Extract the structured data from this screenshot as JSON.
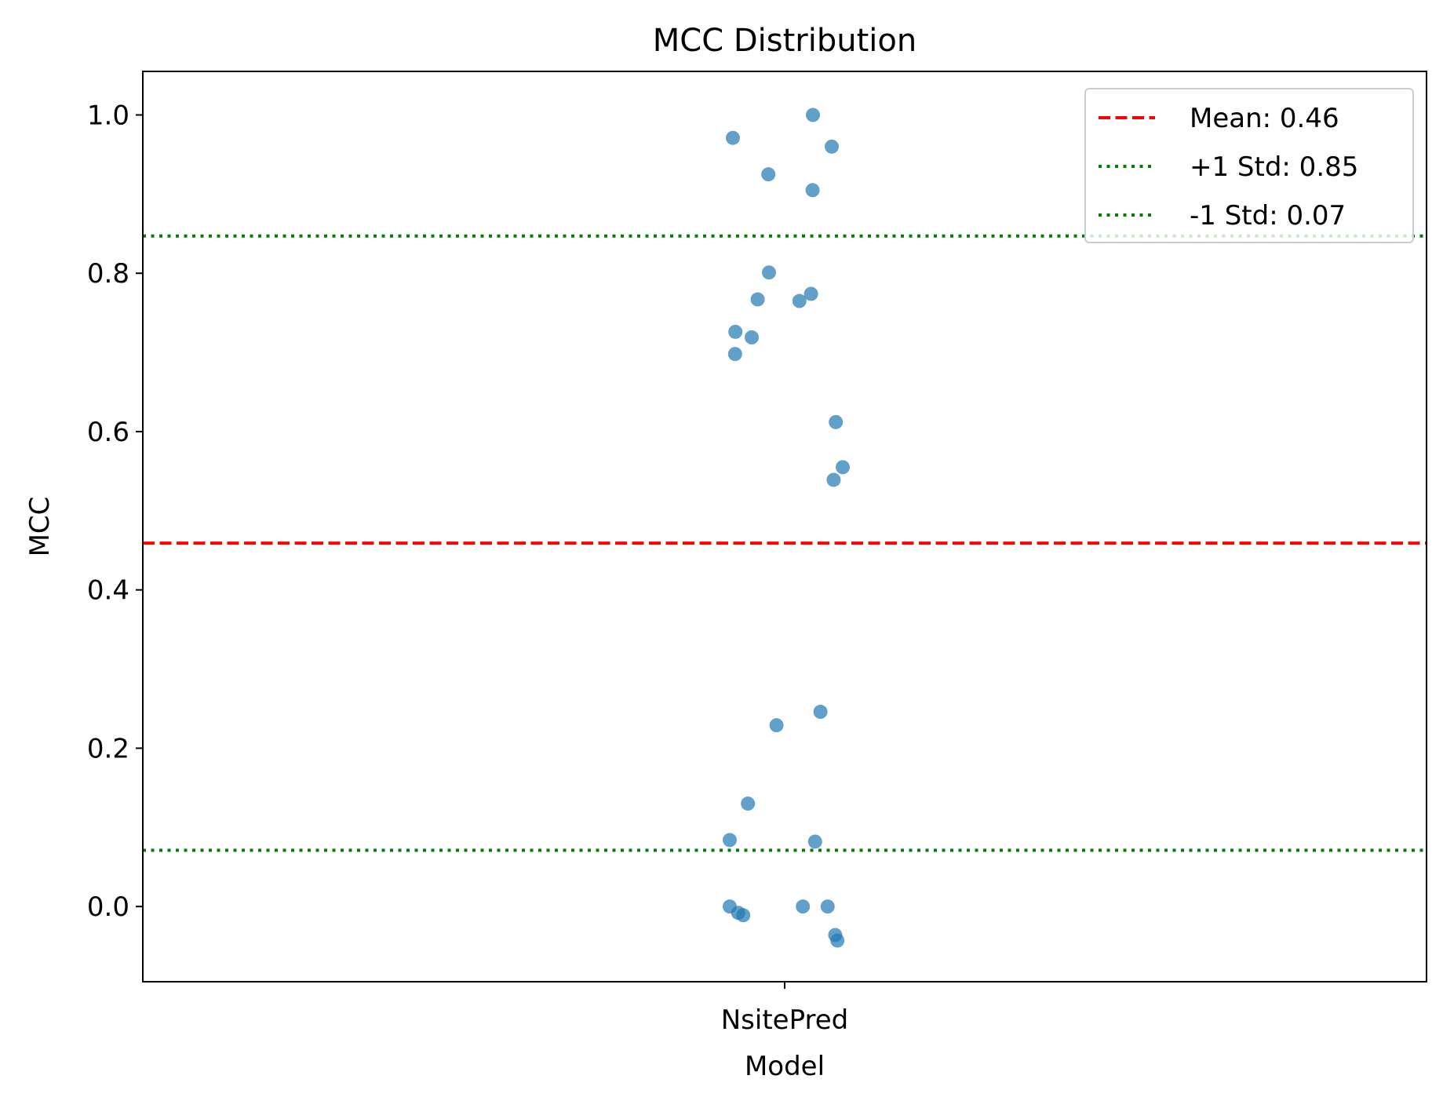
{
  "chart_data": {
    "type": "scatter",
    "title": "MCC Distribution",
    "xlabel": "Model",
    "ylabel": "MCC",
    "categories": [
      "NsitePred"
    ],
    "ylim": [
      -0.095,
      1.055
    ],
    "y_ticks": [
      0.0,
      0.2,
      0.4,
      0.6,
      0.8,
      1.0
    ],
    "y_tick_labels": [
      "0.0",
      "0.2",
      "0.4",
      "0.6",
      "0.8",
      "1.0"
    ],
    "grid": false,
    "legend_position": "top-right",
    "series": [
      {
        "category": "NsitePred",
        "color": "#1f77b4",
        "points": [
          {
            "jitter": -0.165,
            "y": 0.971
          },
          {
            "jitter": 0.09,
            "y": 1.0
          },
          {
            "jitter": 0.15,
            "y": 0.96
          },
          {
            "jitter": -0.052,
            "y": 0.925
          },
          {
            "jitter": 0.089,
            "y": 0.905
          },
          {
            "jitter": -0.05,
            "y": 0.801
          },
          {
            "jitter": -0.086,
            "y": 0.767
          },
          {
            "jitter": 0.047,
            "y": 0.765
          },
          {
            "jitter": 0.084,
            "y": 0.774
          },
          {
            "jitter": -0.157,
            "y": 0.726
          },
          {
            "jitter": -0.105,
            "y": 0.719
          },
          {
            "jitter": -0.158,
            "y": 0.698
          },
          {
            "jitter": 0.163,
            "y": 0.612
          },
          {
            "jitter": 0.185,
            "y": 0.555
          },
          {
            "jitter": 0.156,
            "y": 0.539
          },
          {
            "jitter": -0.026,
            "y": 0.229
          },
          {
            "jitter": 0.114,
            "y": 0.246
          },
          {
            "jitter": -0.117,
            "y": 0.13
          },
          {
            "jitter": -0.175,
            "y": 0.084
          },
          {
            "jitter": 0.097,
            "y": 0.082
          },
          {
            "jitter": -0.175,
            "y": 0.0
          },
          {
            "jitter": -0.148,
            "y": -0.008
          },
          {
            "jitter": -0.132,
            "y": -0.011
          },
          {
            "jitter": 0.058,
            "y": 0.0
          },
          {
            "jitter": 0.137,
            "y": 0.0
          },
          {
            "jitter": 0.161,
            "y": -0.036
          },
          {
            "jitter": 0.168,
            "y": -0.043
          }
        ]
      }
    ],
    "reference_lines": [
      {
        "label": "Mean: 0.46",
        "y": 0.459,
        "color": "#ff0000",
        "style": "dashed"
      },
      {
        "label": "+1 Std: 0.85",
        "y": 0.847,
        "color": "#008000",
        "style": "dotted"
      },
      {
        "label": "-1 Std: 0.07",
        "y": 0.071,
        "color": "#008000",
        "style": "dotted"
      }
    ]
  }
}
